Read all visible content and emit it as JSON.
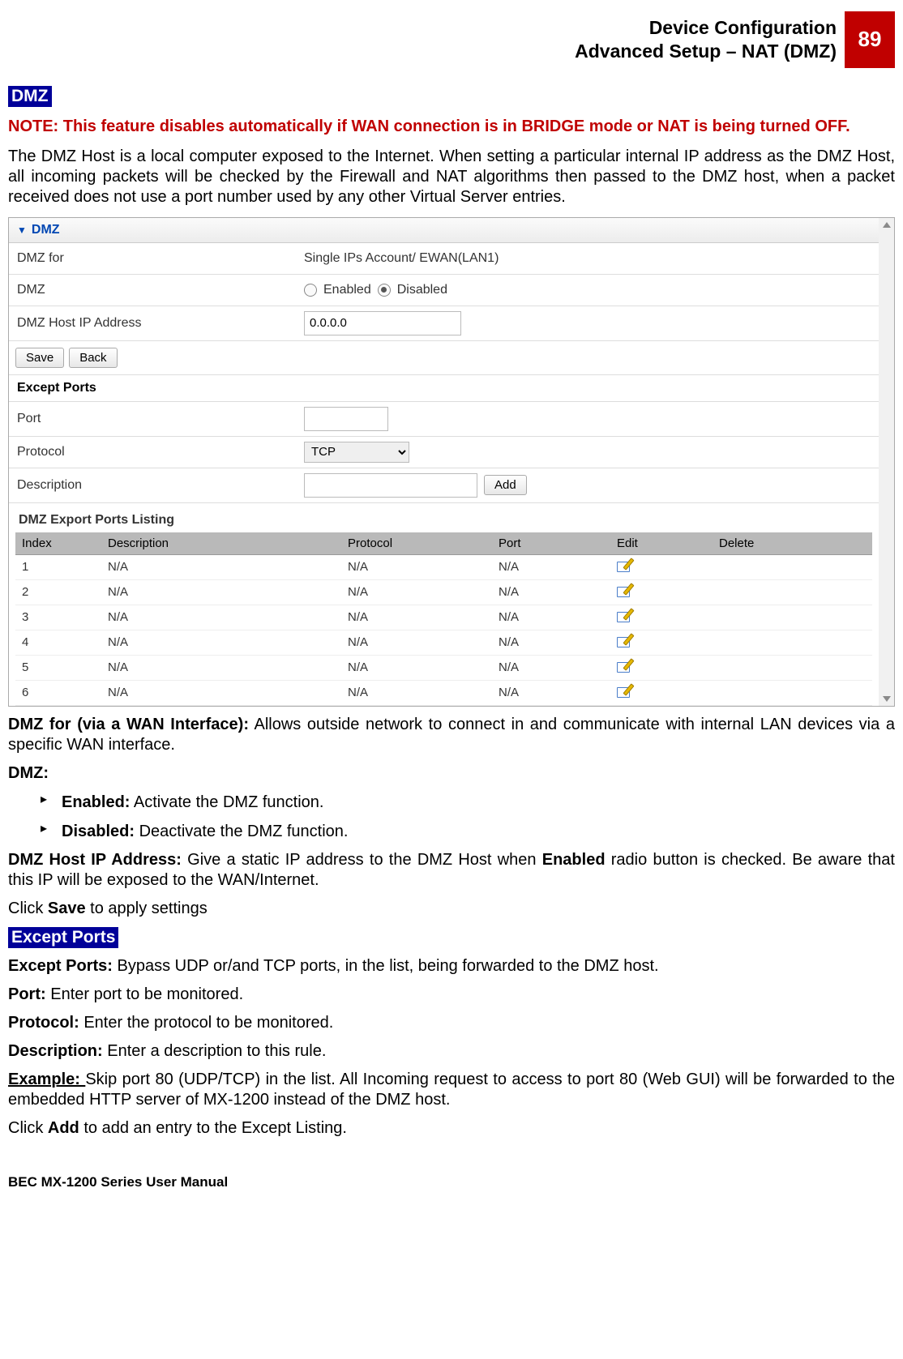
{
  "header": {
    "line1": "Device Configuration",
    "line2": "Advanced Setup – NAT (DMZ)",
    "page_number": "89"
  },
  "badge_dmz": "DMZ",
  "note_red": "NOTE: This feature disables automatically if WAN connection is in BRIDGE mode or NAT is being turned OFF.",
  "para_intro": "The DMZ Host is a local computer exposed to the Internet. When setting a particular internal IP address as the DMZ Host, all incoming packets will be checked by the Firewall and NAT algorithms then passed to the DMZ host, when a packet received does not use a port number used by any other Virtual Server entries.",
  "ui": {
    "section_title": "DMZ",
    "dmz_for_label": "DMZ for",
    "dmz_for_value": "Single IPs Account/ EWAN(LAN1)",
    "dmz_label": "DMZ",
    "radio_enabled": "Enabled",
    "radio_disabled": "Disabled",
    "host_ip_label": "DMZ Host IP Address",
    "host_ip_value": "0.0.0.0",
    "btn_save": "Save",
    "btn_back": "Back",
    "except_ports_title": "Except Ports",
    "port_label": "Port",
    "port_value": "",
    "protocol_label": "Protocol",
    "protocol_value": "TCP",
    "description_label": "Description",
    "description_value": "",
    "btn_add": "Add",
    "listing_title": "DMZ Export Ports Listing",
    "columns": [
      "Index",
      "Description",
      "Protocol",
      "Port",
      "Edit",
      "Delete"
    ],
    "rows": [
      {
        "index": "1",
        "desc": "N/A",
        "proto": "N/A",
        "port": "N/A"
      },
      {
        "index": "2",
        "desc": "N/A",
        "proto": "N/A",
        "port": "N/A"
      },
      {
        "index": "3",
        "desc": "N/A",
        "proto": "N/A",
        "port": "N/A"
      },
      {
        "index": "4",
        "desc": "N/A",
        "proto": "N/A",
        "port": "N/A"
      },
      {
        "index": "5",
        "desc": "N/A",
        "proto": "N/A",
        "port": "N/A"
      },
      {
        "index": "6",
        "desc": "N/A",
        "proto": "N/A",
        "port": "N/A"
      }
    ],
    "col_widths": [
      "90px",
      "280px",
      "170px",
      "130px",
      "110px",
      "auto"
    ],
    "head_bg": "#b9b9b9",
    "section_head_color": "#0047b3"
  },
  "after_ui": {
    "dmz_for_bold": "DMZ for (via a WAN Interface):",
    "dmz_for_text": " Allows outside network to connect in and communicate with internal LAN devices via a specific WAN interface.",
    "dmz_bold": "DMZ:",
    "li_enabled_bold": "Enabled:",
    "li_enabled_text": " Activate the DMZ function.",
    "li_disabled_bold": "Disabled:",
    "li_disabled_text": " Deactivate the DMZ function.",
    "host_bold": "DMZ Host IP Address:",
    "host_text_pre": " Give a static IP address to the DMZ Host when ",
    "host_enabled_bold": "Enabled",
    "host_text_post": " radio button is checked. Be aware that this IP will be exposed to the WAN/Internet.",
    "save_pre": "Click ",
    "save_bold": "Save",
    "save_post": " to apply settings"
  },
  "badge_except": "Except Ports",
  "except_block": {
    "ep_bold": "Except Ports:",
    "ep_text": " Bypass UDP or/and TCP ports, in the list, being forwarded to the DMZ host.",
    "port_bold": "Port:",
    "port_text": " Enter port to be monitored.",
    "proto_bold": "Protocol:",
    "proto_text": " Enter the protocol to be monitored.",
    "desc_bold": "Description:",
    "desc_text": " Enter a description to this rule.",
    "example_bold": "Example: ",
    "example_text": "Skip port 80 (UDP/TCP) in the list.  All Incoming request to access to port 80 (Web GUI) will be forwarded to the embedded HTTP server of MX-1200 instead of the DMZ host.",
    "add_pre": "Click ",
    "add_bold": "Add",
    "add_post": " to add an entry to the Except Listing."
  },
  "footer": "BEC MX-1200 Series User Manual"
}
